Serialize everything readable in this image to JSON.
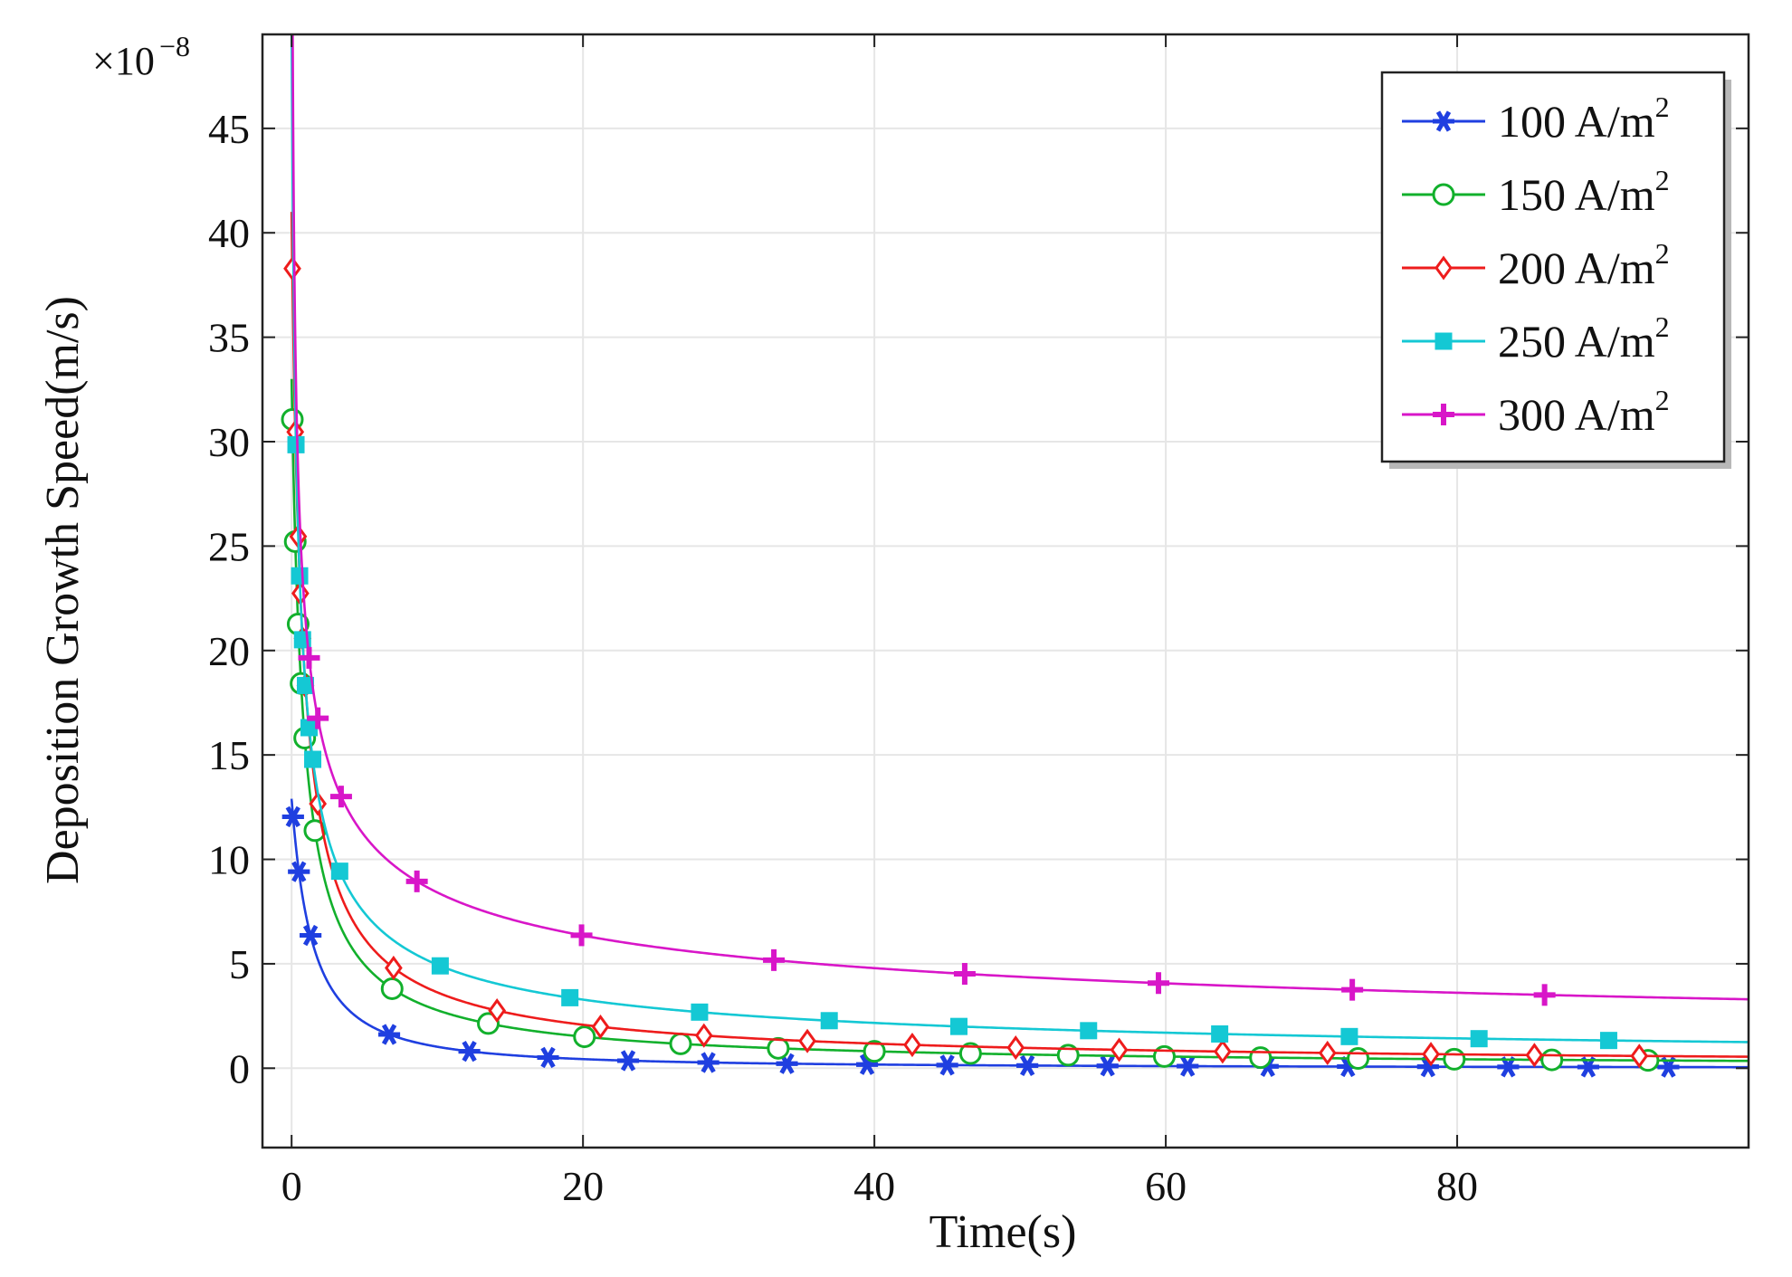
{
  "chart_data": {
    "type": "line",
    "title": "",
    "xlabel": "Time(s)",
    "ylabel": "Deposition Growth Speed(m/s)",
    "y_scale_label": "×10",
    "y_scale_exponent": "−8",
    "xlim": [
      -2,
      100
    ],
    "ylim": [
      -3.8,
      49.5
    ],
    "x_ticks": [
      0,
      20,
      40,
      60,
      80
    ],
    "x_tick_labels": [
      "0",
      "20",
      "40",
      "60",
      "80"
    ],
    "y_ticks": [
      0,
      5,
      10,
      15,
      20,
      25,
      30,
      35,
      40,
      45
    ],
    "y_tick_labels": [
      "0",
      "5",
      "10",
      "15",
      "20",
      "25",
      "30",
      "35",
      "40",
      "45"
    ],
    "grid": true,
    "legend_position": "top-right",
    "series": [
      {
        "name": "100 A/m²",
        "label_main": "100 A/m",
        "label_sup": "2",
        "color": "#1f3fe0",
        "marker": "asterisk",
        "curve": {
          "a": 12.9,
          "b": 0.5,
          "c": 0.12,
          "k": 0.06
        },
        "markers_x": [
          0.1,
          0.5,
          1.3,
          6.7,
          12.2,
          17.6,
          23.1,
          28.6,
          34.0,
          39.5,
          45.0,
          50.5,
          56.0,
          61.5,
          67.0,
          72.5,
          78.0,
          83.5,
          89.0,
          94.5
        ]
      },
      {
        "name": "150 A/m²",
        "label_main": "150 A/m",
        "label_sup": "2",
        "color": "#12b02c",
        "marker": "circle",
        "curve": {
          "a": 33.0,
          "b": 1.35,
          "c": 0.3,
          "k": 0.06
        },
        "markers_x": [
          0.05,
          0.25,
          0.45,
          0.65,
          0.9,
          1.6,
          6.9,
          13.5,
          20.1,
          26.7,
          33.4,
          40.0,
          46.6,
          53.3,
          59.9,
          66.5,
          73.2,
          79.8,
          86.5,
          93.1
        ]
      },
      {
        "name": "200 A/m²",
        "label_main": "200 A/m",
        "label_sup": "2",
        "color": "#ee1c1c",
        "marker": "diamond",
        "curve": {
          "a": 41.0,
          "b": 1.7,
          "c": 0.38,
          "k": 0.065
        },
        "markers_x": [
          0.05,
          0.25,
          0.45,
          0.6,
          0.75,
          0.95,
          1.8,
          7.0,
          14.1,
          21.2,
          28.3,
          35.4,
          42.6,
          49.7,
          56.8,
          63.9,
          71.1,
          78.2,
          85.3,
          92.5
        ]
      },
      {
        "name": "250 A/m²",
        "label_main": "250 A/m",
        "label_sup": "2",
        "color": "#14c8d4",
        "marker": "square",
        "curve": {
          "a": 50.0,
          "b": 4.5,
          "c": 0.8,
          "k": 0.09
        },
        "markers_x": [
          0.3,
          0.55,
          0.75,
          0.95,
          1.2,
          1.45,
          3.3,
          10.2,
          19.1,
          28.0,
          36.9,
          45.8,
          54.7,
          63.7,
          72.6,
          81.5,
          90.4
        ]
      },
      {
        "name": "300 A/m²",
        "label_main": "300 A/m",
        "label_sup": "2",
        "color": "#d816c8",
        "marker": "plus",
        "curve": {
          "a": 70.0,
          "b": 18.0,
          "c": 1.5,
          "k": 0.095
        },
        "markers_x": [
          1.2,
          1.8,
          3.4,
          8.6,
          19.9,
          33.1,
          46.2,
          59.5,
          72.8,
          86.0
        ]
      }
    ]
  }
}
